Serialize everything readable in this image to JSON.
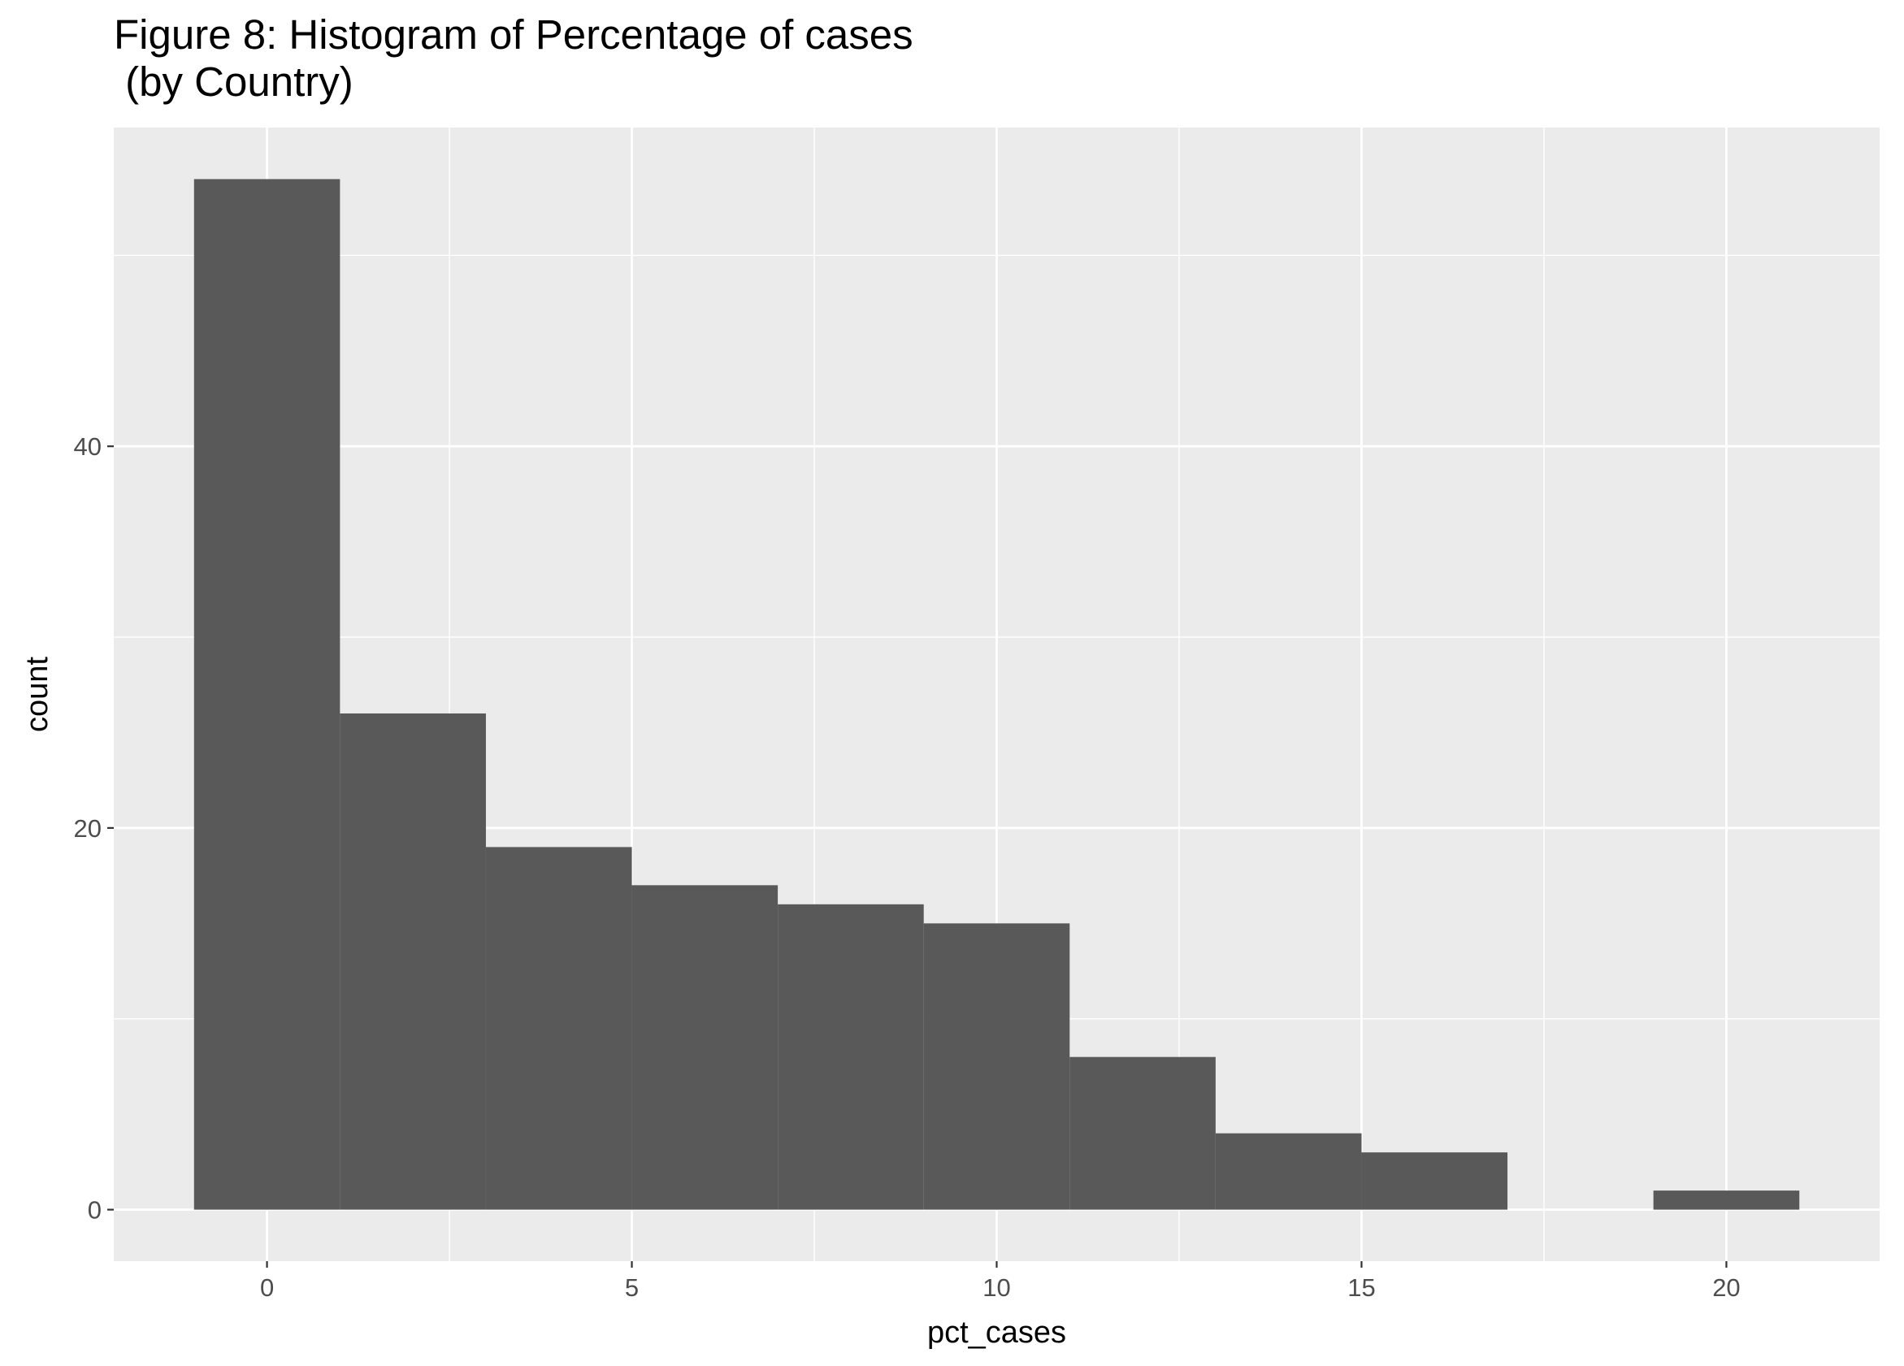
{
  "chart_data": {
    "type": "bar",
    "title": "Figure 8: Histogram of Percentage of cases\n (by Country)",
    "xlabel": "pct_cases",
    "ylabel": "count",
    "bins": [
      {
        "x_start": -1,
        "x_end": 1,
        "count": 54
      },
      {
        "x_start": 1,
        "x_end": 3,
        "count": 26
      },
      {
        "x_start": 3,
        "x_end": 5,
        "count": 19
      },
      {
        "x_start": 5,
        "x_end": 7,
        "count": 17
      },
      {
        "x_start": 7,
        "x_end": 9,
        "count": 16
      },
      {
        "x_start": 9,
        "x_end": 11,
        "count": 15
      },
      {
        "x_start": 11,
        "x_end": 13,
        "count": 8
      },
      {
        "x_start": 13,
        "x_end": 15,
        "count": 4
      },
      {
        "x_start": 15,
        "x_end": 17,
        "count": 3
      },
      {
        "x_start": 17,
        "x_end": 19,
        "count": 0
      },
      {
        "x_start": 19,
        "x_end": 21,
        "count": 1
      }
    ],
    "x_ticks": [
      0,
      5,
      10,
      15,
      20
    ],
    "y_ticks": [
      0,
      20,
      40
    ],
    "xlim": [
      -2.1,
      22.1
    ],
    "ylim": [
      -2.7,
      56.7
    ],
    "grid": true,
    "colors": {
      "bar": "#595959",
      "panel": "#ebebeb",
      "grid": "#ffffff",
      "tick_text": "#4d4d4d",
      "tick_mark": "#333333"
    }
  }
}
